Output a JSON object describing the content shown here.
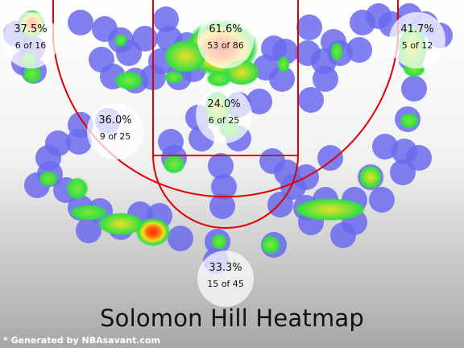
{
  "chart_data": {
    "type": "heatmap",
    "title": "Solomon Hill Heatmap",
    "zones": [
      {
        "zone": "left corner three",
        "pct": "37.5%",
        "made_attempted": "6 of 16",
        "made": 6,
        "attempted": 16
      },
      {
        "zone": "paint / restricted area",
        "pct": "61.6%",
        "made_attempted": "53 of 86",
        "made": 53,
        "attempted": 86
      },
      {
        "zone": "right corner three",
        "pct": "41.7%",
        "made_attempted": "5 of 12",
        "made": 5,
        "attempted": 12
      },
      {
        "zone": "left mid-range",
        "pct": "36.0%",
        "made_attempted": "9 of 25",
        "made": 9,
        "attempted": 25
      },
      {
        "zone": "free throw / paint mid",
        "pct": "24.0%",
        "made_attempted": "6 of 25",
        "made": 6,
        "attempted": 25
      },
      {
        "zone": "top of key three",
        "pct": "33.3%",
        "made_attempted": "15 of 45",
        "made": 15,
        "attempted": 45
      }
    ]
  },
  "footer": "* Generated by NBAsavant.com",
  "colors": {
    "court_line": "#e00000",
    "shot_dot": "#6a6aee",
    "heat_low": "#33dd44",
    "heat_mid": "#f0e020",
    "heat_high": "#ff2a10"
  }
}
